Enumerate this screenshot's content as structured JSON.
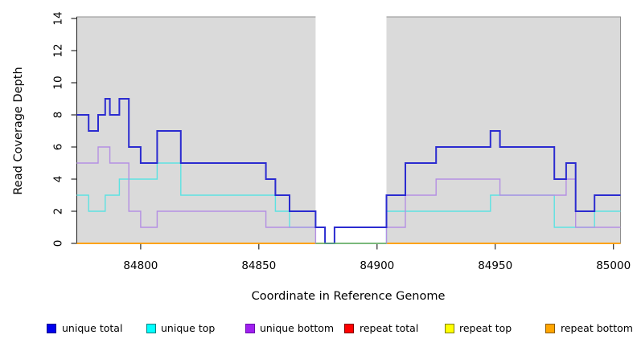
{
  "figure": {
    "background": "#ffffff",
    "panel_bg": "#dadada",
    "panel_border": "#8f8f8f",
    "axis_color": "#1a1a1a",
    "tick_color": "#2a2a2a",
    "text_color": "#000000"
  },
  "chart_data": {
    "type": "line",
    "subtype": "step-post",
    "title": "",
    "xlabel": "Coordinate in Reference Genome",
    "ylabel": "Read Coverage Depth",
    "xlim": [
      84773,
      85003
    ],
    "ylim": [
      0,
      14.1
    ],
    "xticks": [
      84800,
      84850,
      84900,
      84950,
      85000
    ],
    "yticks": [
      0,
      2,
      4,
      6,
      8,
      10,
      12,
      14
    ],
    "grid": "off",
    "legend_position": "bottom",
    "gap_region": {
      "from": 84874,
      "to": 84904,
      "fill": "#ffffff",
      "baseline_color": "#68be68",
      "baseline_y": 0
    },
    "series": [
      {
        "name": "unique total",
        "color": "#2b2bd0",
        "width": 2,
        "breaks": [
          84773,
          84778,
          84782,
          84785,
          84787,
          84791,
          84795,
          84800,
          84807,
          84817,
          84853,
          84857,
          84863,
          84874,
          84878,
          84882,
          84904,
          84912,
          84925,
          84948,
          84952,
          84975,
          84980,
          84984,
          84992,
          85003
        ],
        "values": [
          8,
          7,
          8,
          9,
          8,
          9,
          6,
          5,
          7,
          5,
          4,
          3,
          2,
          1,
          0,
          1,
          3,
          5,
          6,
          7,
          6,
          4,
          5,
          2,
          3
        ]
      },
      {
        "name": "unique top",
        "color": "#5ce2e2",
        "width": 1.4,
        "breaks": [
          84773,
          84778,
          84785,
          84791,
          84807,
          84817,
          84857,
          84863,
          84878,
          84904,
          84948,
          84975,
          84992,
          85003
        ],
        "values": [
          3,
          2,
          3,
          4,
          5,
          3,
          2,
          1,
          0,
          2,
          3,
          1,
          2
        ]
      },
      {
        "name": "unique bottom",
        "color": "#b48fe3",
        "width": 1.4,
        "breaks": [
          84773,
          84782,
          84787,
          84795,
          84800,
          84807,
          84853,
          84874,
          84904,
          84912,
          84925,
          84952,
          84980,
          84984,
          85003
        ],
        "values": [
          5,
          6,
          5,
          2,
          1,
          2,
          1,
          0,
          1,
          3,
          4,
          3,
          4,
          1
        ]
      },
      {
        "name": "repeat total",
        "color": "#e03030",
        "width": 1.3,
        "breaks": [
          84773,
          85003
        ],
        "values": [
          0
        ]
      },
      {
        "name": "repeat top",
        "color": "#f2f20a",
        "width": 1.3,
        "breaks": [
          84773,
          85003
        ],
        "values": [
          0
        ]
      },
      {
        "name": "repeat bottom",
        "color": "#ff9d00",
        "width": 1.8,
        "breaks": [
          84773,
          85003
        ],
        "values": [
          0
        ]
      }
    ]
  },
  "legend": {
    "items": [
      {
        "label": "unique total",
        "fill": "#0000ee",
        "border": "#00008b"
      },
      {
        "label": "unique top",
        "fill": "#00ffff",
        "border": "#007f7f"
      },
      {
        "label": "unique bottom",
        "fill": "#a020f0",
        "border": "#6a0dad"
      },
      {
        "label": "repeat total",
        "fill": "#ff0000",
        "border": "#800000"
      },
      {
        "label": "repeat top",
        "fill": "#ffff00",
        "border": "#808000"
      },
      {
        "label": "repeat bottom",
        "fill": "#ffa500",
        "border": "#8b5a00"
      }
    ]
  }
}
